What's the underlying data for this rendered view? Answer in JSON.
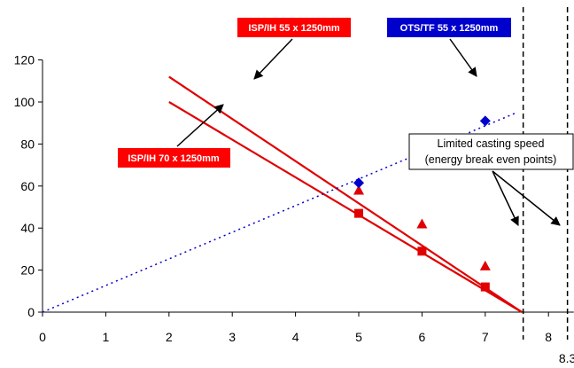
{
  "chart_data": {
    "type": "line",
    "title": "",
    "xlabel": "",
    "ylabel": "",
    "xlim": [
      0,
      8.4
    ],
    "ylim": [
      0,
      120
    ],
    "x_ticks": [
      0,
      1,
      2,
      3,
      4,
      5,
      6,
      7,
      8
    ],
    "y_ticks": [
      0,
      20,
      40,
      60,
      80,
      100,
      120
    ],
    "grid": false,
    "colors": {
      "red": "#ff0000",
      "blue": "#0000cc",
      "lines": "#e00000"
    },
    "series": [
      {
        "id": "isp55",
        "label": "ISP/IH 55 x 1250mm",
        "color": "#e00000",
        "style": "solid",
        "marker": "triangle",
        "line": [
          [
            2,
            112
          ],
          [
            7.58,
            0
          ]
        ],
        "points": [
          [
            5,
            58
          ],
          [
            6,
            42
          ],
          [
            7,
            22
          ]
        ]
      },
      {
        "id": "isp70",
        "label": "ISP/IH 70 x 1250mm",
        "color": "#e00000",
        "style": "solid",
        "marker": "square",
        "line": [
          [
            2,
            100
          ],
          [
            7.58,
            0
          ]
        ],
        "points": [
          [
            5,
            47
          ],
          [
            6,
            29
          ],
          [
            7,
            12
          ]
        ]
      },
      {
        "id": "ots",
        "label": "OTS/TF 55 x 1250mm",
        "color": "#0000cc",
        "style": "dotted",
        "marker": "diamond",
        "line": [
          [
            0,
            0
          ],
          [
            7.5,
            95
          ]
        ],
        "points": [
          [
            5,
            61.5
          ],
          [
            7,
            91
          ]
        ]
      }
    ],
    "vlines": [
      {
        "x": 7.6,
        "label": ""
      },
      {
        "x": 8.3,
        "label": "8.3"
      }
    ],
    "annotation": {
      "line1": "Limited casting speed",
      "line2": "(energy break even points)"
    }
  }
}
